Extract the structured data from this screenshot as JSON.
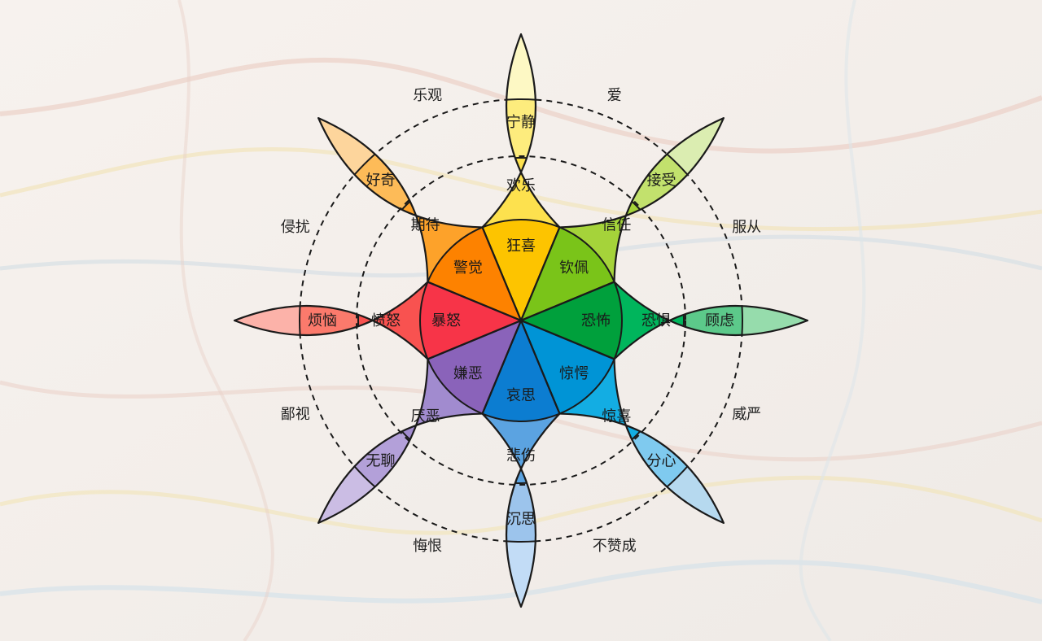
{
  "petals": [
    {
      "key": "joy",
      "outer": "宁静",
      "middle": "欢乐",
      "inner": "狂喜",
      "colors": {
        "tip": "#fdf8c4",
        "outer": "#fdec7d",
        "middle": "#fde14e",
        "inner": "#fdc400"
      }
    },
    {
      "key": "trust",
      "outer": "接受",
      "middle": "信任",
      "inner": "钦佩",
      "colors": {
        "tip": "#dbedb1",
        "outer": "#c2e16d",
        "middle": "#a5d33a",
        "inner": "#7ac419"
      }
    },
    {
      "key": "fear",
      "outer": "顾虑",
      "middle": "恐惧",
      "inner": "恐怖",
      "colors": {
        "tip": "#96dcac",
        "outer": "#5cc98a",
        "middle": "#00b55c",
        "inner": "#00a03c"
      }
    },
    {
      "key": "surprise",
      "outer": "分心",
      "middle": "惊喜",
      "inner": "惊愕",
      "colors": {
        "tip": "#b6d9ef",
        "outer": "#7fcaef",
        "middle": "#13ade3",
        "inner": "#0094d6"
      }
    },
    {
      "key": "sadness",
      "outer": "沉思",
      "middle": "悲伤",
      "inner": "哀思",
      "colors": {
        "tip": "#c2dcf6",
        "outer": "#9cc4ec",
        "middle": "#5ba3e1",
        "inner": "#0c7dd1"
      }
    },
    {
      "key": "disgust",
      "outer": "无聊",
      "middle": "厌恶",
      "inner": "嫌恶",
      "colors": {
        "tip": "#cbbde4",
        "outer": "#b3a0d9",
        "middle": "#a18bcf",
        "inner": "#8a63ba"
      }
    },
    {
      "key": "anger",
      "outer": "烦恼",
      "middle": "愤怒",
      "inner": "暴怒",
      "colors": {
        "tip": "#fcb2a9",
        "outer": "#fb7a6c",
        "middle": "#f85250",
        "inner": "#f73448"
      }
    },
    {
      "key": "anticipation",
      "outer": "好奇",
      "middle": "期待",
      "inner": "警觉",
      "colors": {
        "tip": "#fdd59c",
        "outer": "#fdbb58",
        "middle": "#fda22a",
        "inner": "#fd8200"
      }
    }
  ],
  "dyads": [
    {
      "text": "爱"
    },
    {
      "text": "服从"
    },
    {
      "text": "威严"
    },
    {
      "text": "不赞成"
    },
    {
      "text": "悔恨"
    },
    {
      "text": "鄙视"
    },
    {
      "text": "侵扰"
    },
    {
      "text": "乐观"
    }
  ]
}
